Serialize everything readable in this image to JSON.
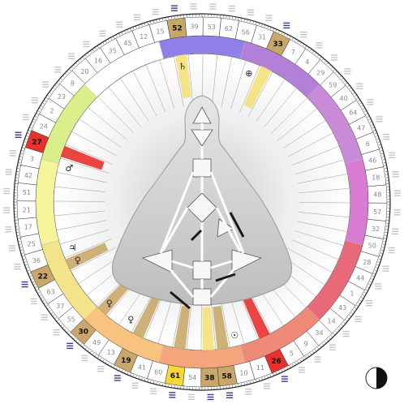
{
  "wheel": {
    "gate_order": [
      "41",
      "19",
      "13",
      "49",
      "30",
      "55",
      "37",
      "63",
      "22",
      "36",
      "25",
      "17",
      "21",
      "51",
      "42",
      "3",
      "27",
      "24",
      "2",
      "23",
      "8",
      "20",
      "16",
      "35",
      "45",
      "12",
      "15",
      "52",
      "39",
      "53",
      "62",
      "56",
      "31",
      "33",
      "7",
      "4",
      "29",
      "59",
      "40",
      "64",
      "47",
      "6",
      "46",
      "18",
      "48",
      "57",
      "32",
      "50",
      "28",
      "44",
      "1",
      "43",
      "14",
      "34",
      "9",
      "5",
      "26",
      "11",
      "10",
      "58",
      "38",
      "54",
      "61",
      "60"
    ],
    "highlighted_gates": [
      {
        "gate": "61",
        "color": "#f4d836"
      },
      {
        "gate": "38",
        "color": "#c9a76a"
      },
      {
        "gate": "58",
        "color": "#c9a76a"
      },
      {
        "gate": "26",
        "color": "#e8312d"
      },
      {
        "gate": "19",
        "color": "#c9a76a"
      },
      {
        "gate": "30",
        "color": "#c9a76a"
      },
      {
        "gate": "22",
        "color": "#c9a76a"
      },
      {
        "gate": "27",
        "color": "#e8312d"
      },
      {
        "gate": "52",
        "color": "#c9a76a"
      },
      {
        "gate": "33",
        "color": "#c9a76a"
      }
    ],
    "zodiac_colors": [
      "#8f7fe8",
      "#b27fd9",
      "#c98ad8",
      "#d87bd3",
      "#e86a78",
      "#f08a78",
      "#f5a57c",
      "#f8c27f",
      "#f3e48a",
      "#f6f49a",
      "#d9f08a",
      "#ffffff"
    ],
    "planet_symbols": [
      "♀",
      "♀",
      "♂",
      "☉",
      "♀",
      "♃",
      "♄",
      "⊕"
    ],
    "colors": {
      "ring_line": "#222222",
      "body_fill": "#dcdcdc",
      "center_fill": "#f4f4f4",
      "activation_tan": "#c9a76a",
      "activation_yellow": "#f4e07a",
      "activation_red": "#e8312d"
    },
    "moon_icon": "moon-phase-icon"
  }
}
